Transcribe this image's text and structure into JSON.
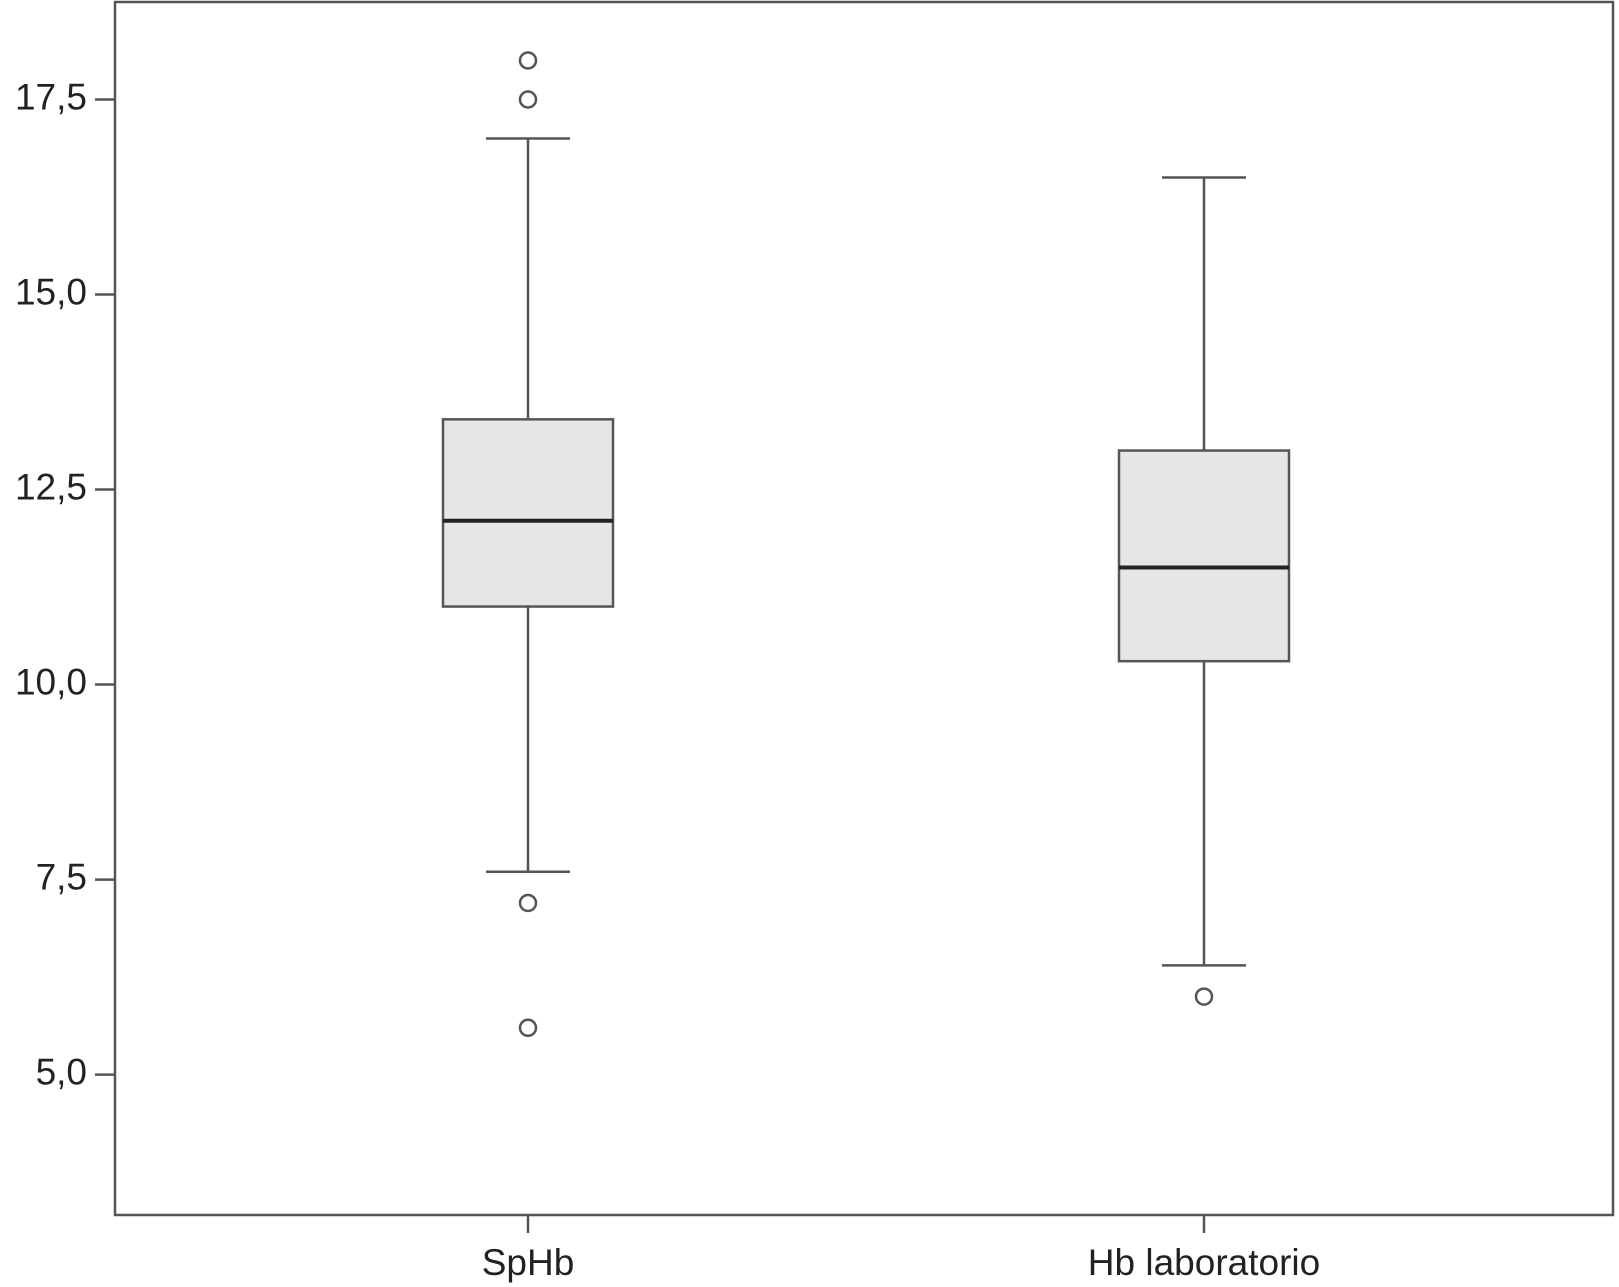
{
  "chart_data": {
    "type": "box",
    "categories": [
      "SpHb",
      "Hb laboratorio"
    ],
    "boxes": [
      {
        "whisker_low": 7.6,
        "q1": 11.0,
        "median": 12.1,
        "q3": 13.4,
        "whisker_high": 17.0,
        "outliers": [
          18.0,
          17.5,
          7.2,
          5.6
        ]
      },
      {
        "whisker_low": 6.4,
        "q1": 10.3,
        "median": 11.5,
        "q3": 13.0,
        "whisker_high": 16.5,
        "outliers": [
          6.0
        ]
      }
    ],
    "color": "#e6e6e6",
    "ylim": [
      3.2,
      18.75
    ],
    "yticks": [
      {
        "value": 5.0,
        "label": "5,0"
      },
      {
        "value": 7.5,
        "label": "7,5"
      },
      {
        "value": 10.0,
        "label": "10,0"
      },
      {
        "value": 12.5,
        "label": "12,5"
      },
      {
        "value": 15.0,
        "label": "15,0"
      },
      {
        "value": 17.5,
        "label": "17,5"
      }
    ]
  }
}
